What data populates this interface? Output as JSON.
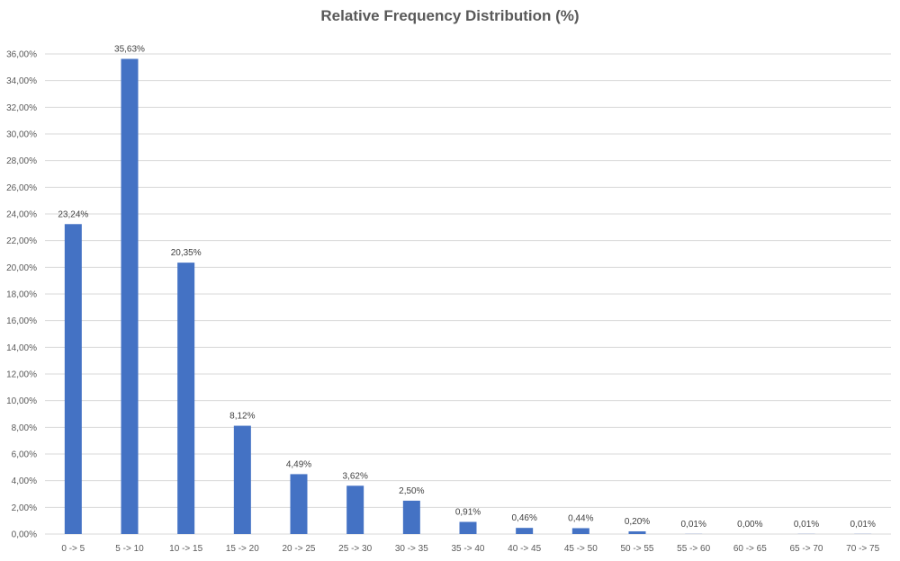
{
  "chart_data": {
    "type": "bar",
    "title": "Relative Frequency Distribution (%)",
    "xlabel": "",
    "ylabel": "",
    "categories": [
      "0 -> 5",
      "5 -> 10",
      "10 -> 15",
      "15 -> 20",
      "20 -> 25",
      "25 -> 30",
      "30 -> 35",
      "35 -> 40",
      "40 -> 45",
      "45 -> 50",
      "50 -> 55",
      "55 -> 60",
      "60 -> 65",
      "65 -> 70",
      "70 -> 75"
    ],
    "values": [
      23.24,
      35.63,
      20.35,
      8.12,
      4.49,
      3.62,
      2.5,
      0.91,
      0.46,
      0.44,
      0.2,
      0.01,
      0.0,
      0.01,
      0.01
    ],
    "data_labels": [
      "23,24%",
      "35,63%",
      "20,35%",
      "8,12%",
      "4,49%",
      "3,62%",
      "2,50%",
      "0,91%",
      "0,46%",
      "0,44%",
      "0,20%",
      "0,01%",
      "0,00%",
      "0,01%",
      "0,01%"
    ],
    "ylim": [
      0,
      36
    ],
    "y_ticks": [
      0,
      2,
      4,
      6,
      8,
      10,
      12,
      14,
      16,
      18,
      20,
      22,
      24,
      26,
      28,
      30,
      32,
      34,
      36
    ],
    "y_tick_labels": [
      "0,00%",
      "2,00%",
      "4,00%",
      "6,00%",
      "8,00%",
      "10,00%",
      "12,00%",
      "14,00%",
      "16,00%",
      "18,00%",
      "20,00%",
      "22,00%",
      "24,00%",
      "26,00%",
      "28,00%",
      "30,00%",
      "32,00%",
      "34,00%",
      "36,00%"
    ],
    "grid": true,
    "legend": "none",
    "bar_color": "#4472c4"
  }
}
